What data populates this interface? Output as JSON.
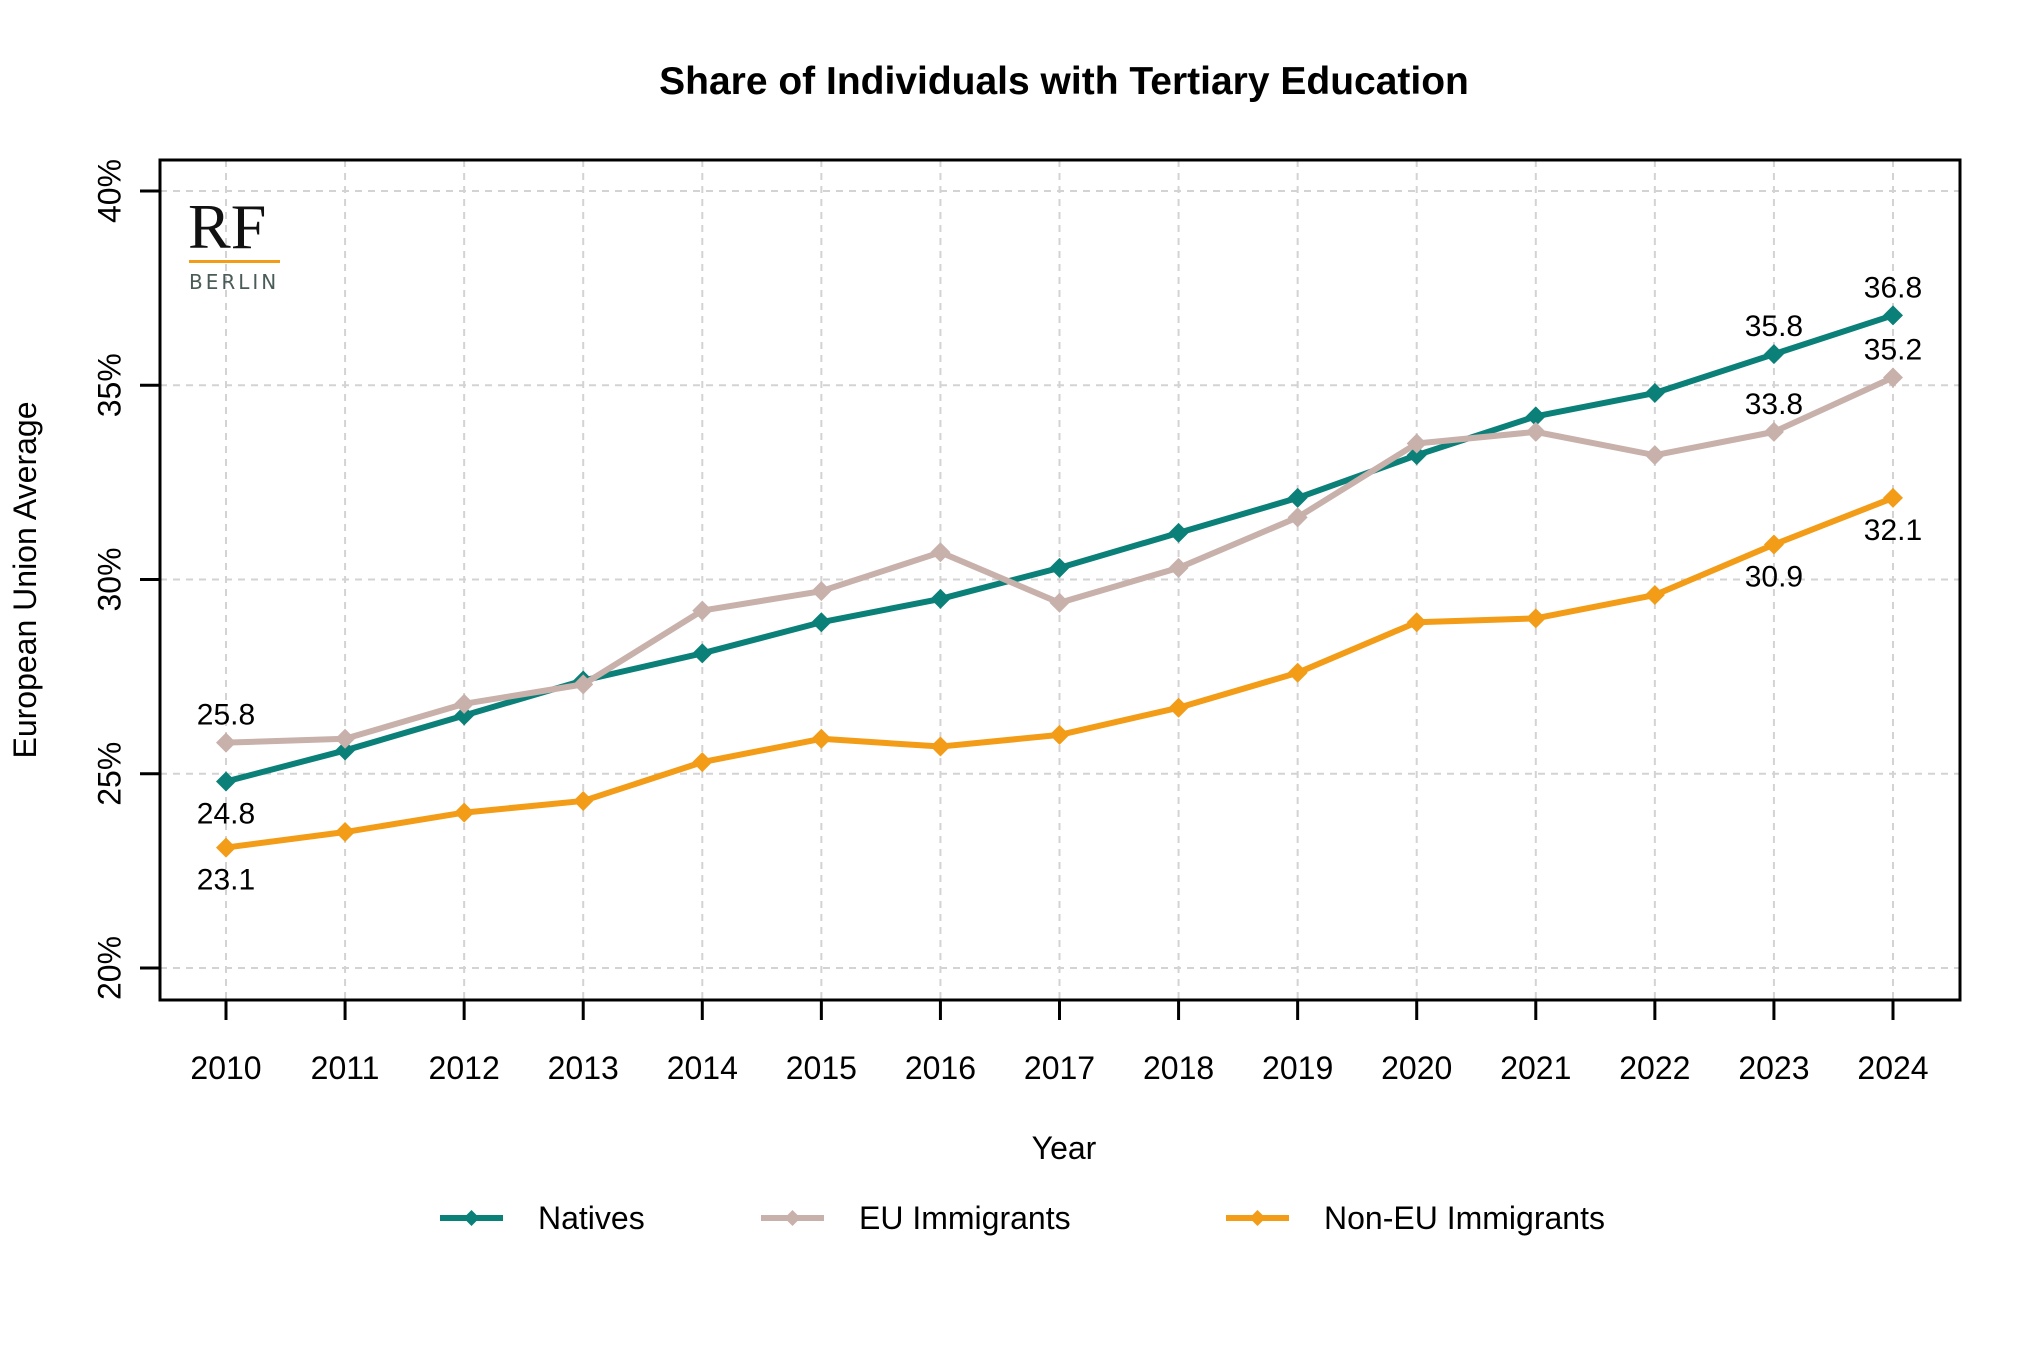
{
  "chart_data": {
    "type": "line",
    "title": "Share of Individuals with Tertiary Education",
    "xlabel": "Year",
    "ylabel": "European Union Average",
    "x": [
      2010,
      2011,
      2012,
      2013,
      2014,
      2015,
      2016,
      2017,
      2018,
      2019,
      2020,
      2021,
      2022,
      2023,
      2024
    ],
    "x_tick_labels": [
      "2010",
      "2011",
      "2012",
      "2013",
      "2014",
      "2015",
      "2016",
      "2017",
      "2018",
      "2019",
      "2020",
      "2021",
      "2022",
      "2023",
      "2024"
    ],
    "ylim": [
      19.2,
      41.0
    ],
    "y_ticks": [
      20,
      25,
      30,
      35,
      40
    ],
    "y_tick_labels": [
      "20%",
      "25%",
      "30%",
      "35%",
      "40%"
    ],
    "grid": true,
    "legend_position": "bottom",
    "series": [
      {
        "name": "Natives",
        "color": "#0b8079",
        "marker": "diamond",
        "values": [
          24.8,
          25.6,
          26.5,
          27.4,
          28.1,
          28.9,
          29.5,
          30.3,
          31.2,
          32.1,
          33.2,
          34.2,
          34.8,
          35.8,
          36.8
        ]
      },
      {
        "name": "EU Immigrants",
        "color": "#c8b0ab",
        "marker": "diamond",
        "values": [
          25.8,
          25.9,
          26.8,
          27.3,
          29.2,
          29.7,
          30.7,
          29.4,
          30.3,
          31.6,
          33.5,
          33.8,
          33.2,
          33.8,
          35.2
        ]
      },
      {
        "name": "Non-EU Immigrants",
        "color": "#f29c17",
        "marker": "diamond",
        "values": [
          23.1,
          23.5,
          24.0,
          24.3,
          25.3,
          25.9,
          25.7,
          26.0,
          26.7,
          27.6,
          28.9,
          29.0,
          29.6,
          30.9,
          32.1
        ]
      }
    ],
    "annotations": [
      {
        "series": 0,
        "x": 2010,
        "text": "24.8",
        "placement": "below"
      },
      {
        "series": 1,
        "x": 2010,
        "text": "25.8",
        "placement": "above"
      },
      {
        "series": 2,
        "x": 2010,
        "text": "23.1",
        "placement": "below"
      },
      {
        "series": 0,
        "x": 2023,
        "text": "35.8",
        "placement": "above"
      },
      {
        "series": 1,
        "x": 2023,
        "text": "33.8",
        "placement": "above"
      },
      {
        "series": 2,
        "x": 2023,
        "text": "30.9",
        "placement": "below"
      },
      {
        "series": 0,
        "x": 2024,
        "text": "36.8",
        "placement": "above"
      },
      {
        "series": 1,
        "x": 2024,
        "text": "35.2",
        "placement": "above"
      },
      {
        "series": 2,
        "x": 2024,
        "text": "32.1",
        "placement": "below"
      }
    ]
  },
  "logo": {
    "main": "RF",
    "sub": "BERLIN",
    "accent_color": "#f29c17",
    "sub_color": "#4a5c58"
  }
}
